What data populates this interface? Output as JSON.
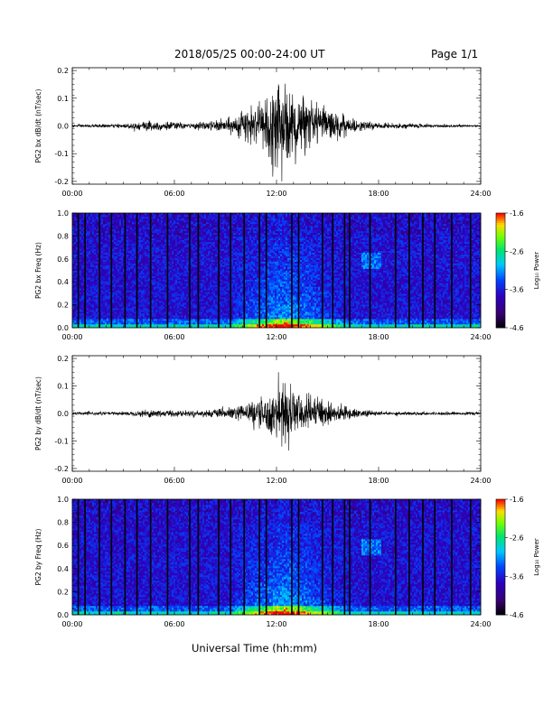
{
  "header": {
    "title": "2018/05/25  00:00-24:00 UT",
    "page": "Page 1/1"
  },
  "xlabel": "Universal Time (hh:mm)",
  "colorbar": {
    "label": "Log₁₀ Power",
    "ticks": [
      "-1.6",
      "-2.6",
      "-3.6",
      "-4.6"
    ],
    "range": [
      -4.6,
      -1.6
    ]
  },
  "chart_data": [
    {
      "type": "line",
      "title": "",
      "ylabel": "PG2 bx dB/dt (nT/sec)",
      "xlabel": "",
      "x_ticks": [
        "00:00",
        "06:00",
        "12:00",
        "18:00",
        "24:00"
      ],
      "y_ticks": [
        "0.2",
        "0.1",
        "0.0",
        "-0.1",
        "-0.2"
      ],
      "xlim": [
        0,
        24
      ],
      "ylim": [
        -0.21,
        0.21
      ],
      "grid": false,
      "envelope": [
        {
          "hour": 0,
          "amp": 0.004
        },
        {
          "hour": 3,
          "amp": 0.006
        },
        {
          "hour": 4.5,
          "amp": 0.018
        },
        {
          "hour": 7,
          "amp": 0.008
        },
        {
          "hour": 9,
          "amp": 0.02
        },
        {
          "hour": 11,
          "amp": 0.055
        },
        {
          "hour": 12,
          "amp": 0.12
        },
        {
          "hour": 13,
          "amp": 0.11
        },
        {
          "hour": 14,
          "amp": 0.06
        },
        {
          "hour": 15.5,
          "amp": 0.045
        },
        {
          "hour": 16.5,
          "amp": 0.02
        },
        {
          "hour": 18,
          "amp": 0.008
        },
        {
          "hour": 24,
          "amp": 0.004
        }
      ],
      "peak": {
        "min": -0.2,
        "max": 0.15
      }
    },
    {
      "type": "heatmap",
      "title": "",
      "ylabel": "PG2 bx Freq (Hz)",
      "xlabel": "",
      "x_ticks": [
        "00:00",
        "06:00",
        "12:00",
        "18:00",
        "24:00"
      ],
      "y_ticks": [
        "1.0",
        "0.8",
        "0.6",
        "0.4",
        "0.2",
        "0.0"
      ],
      "xlim": [
        0,
        24
      ],
      "ylim": [
        0,
        1.0
      ],
      "z_label": "Log₁₀ Power",
      "zlim": [
        -4.6,
        -1.6
      ],
      "data_gaps_hours": [
        0.35,
        0.75,
        1.6,
        2.3,
        3.1,
        3.8,
        4.6,
        5.6,
        6.9,
        7.4,
        8.6,
        9.3,
        10.1,
        11.0,
        11.4,
        12.9,
        13.3,
        14.7,
        15.3,
        16.0,
        16.3,
        17.5,
        19.0,
        19.8,
        20.6,
        21.3,
        22.3,
        23.4
      ],
      "active_band": {
        "start_hour": 9.5,
        "end_hour": 16.5,
        "peak_hour": 12.5
      }
    },
    {
      "type": "line",
      "title": "",
      "ylabel": "PG2 by dB/dt (nT/sec)",
      "xlabel": "",
      "x_ticks": [
        "00:00",
        "06:00",
        "12:00",
        "18:00",
        "24:00"
      ],
      "y_ticks": [
        "0.2",
        "0.1",
        "0.0",
        "-0.1",
        "-0.2"
      ],
      "xlim": [
        0,
        24
      ],
      "ylim": [
        -0.21,
        0.21
      ],
      "grid": false,
      "envelope": [
        {
          "hour": 0,
          "amp": 0.004
        },
        {
          "hour": 3.5,
          "amp": 0.006
        },
        {
          "hour": 4.5,
          "amp": 0.014
        },
        {
          "hour": 7,
          "amp": 0.008
        },
        {
          "hour": 9,
          "amp": 0.015
        },
        {
          "hour": 11,
          "amp": 0.04
        },
        {
          "hour": 12.5,
          "amp": 0.09
        },
        {
          "hour": 13.5,
          "amp": 0.06
        },
        {
          "hour": 15,
          "amp": 0.035
        },
        {
          "hour": 16.5,
          "amp": 0.015
        },
        {
          "hour": 18,
          "amp": 0.006
        },
        {
          "hour": 24,
          "amp": 0.004
        }
      ],
      "peak": {
        "min": -0.12,
        "max": 0.15
      }
    },
    {
      "type": "heatmap",
      "title": "",
      "ylabel": "PG2 by Freq (Hz)",
      "xlabel": "Universal Time (hh:mm)",
      "x_ticks": [
        "00:00",
        "06:00",
        "12:00",
        "18:00",
        "24:00"
      ],
      "y_ticks": [
        "1.0",
        "0.8",
        "0.6",
        "0.4",
        "0.2",
        "0.0"
      ],
      "xlim": [
        0,
        24
      ],
      "ylim": [
        0,
        1.0
      ],
      "z_label": "Log₁₀ Power",
      "zlim": [
        -4.6,
        -1.6
      ],
      "data_gaps_hours": [
        0.35,
        0.75,
        1.6,
        2.3,
        3.1,
        3.8,
        4.6,
        5.6,
        6.9,
        7.4,
        8.6,
        9.3,
        10.1,
        11.0,
        11.4,
        12.9,
        13.3,
        14.7,
        15.3,
        16.0,
        16.3,
        17.5,
        19.0,
        19.8,
        20.6,
        21.3,
        22.3,
        23.4
      ],
      "active_band": {
        "start_hour": 9.5,
        "end_hour": 16.5,
        "peak_hour": 12.5
      }
    }
  ]
}
